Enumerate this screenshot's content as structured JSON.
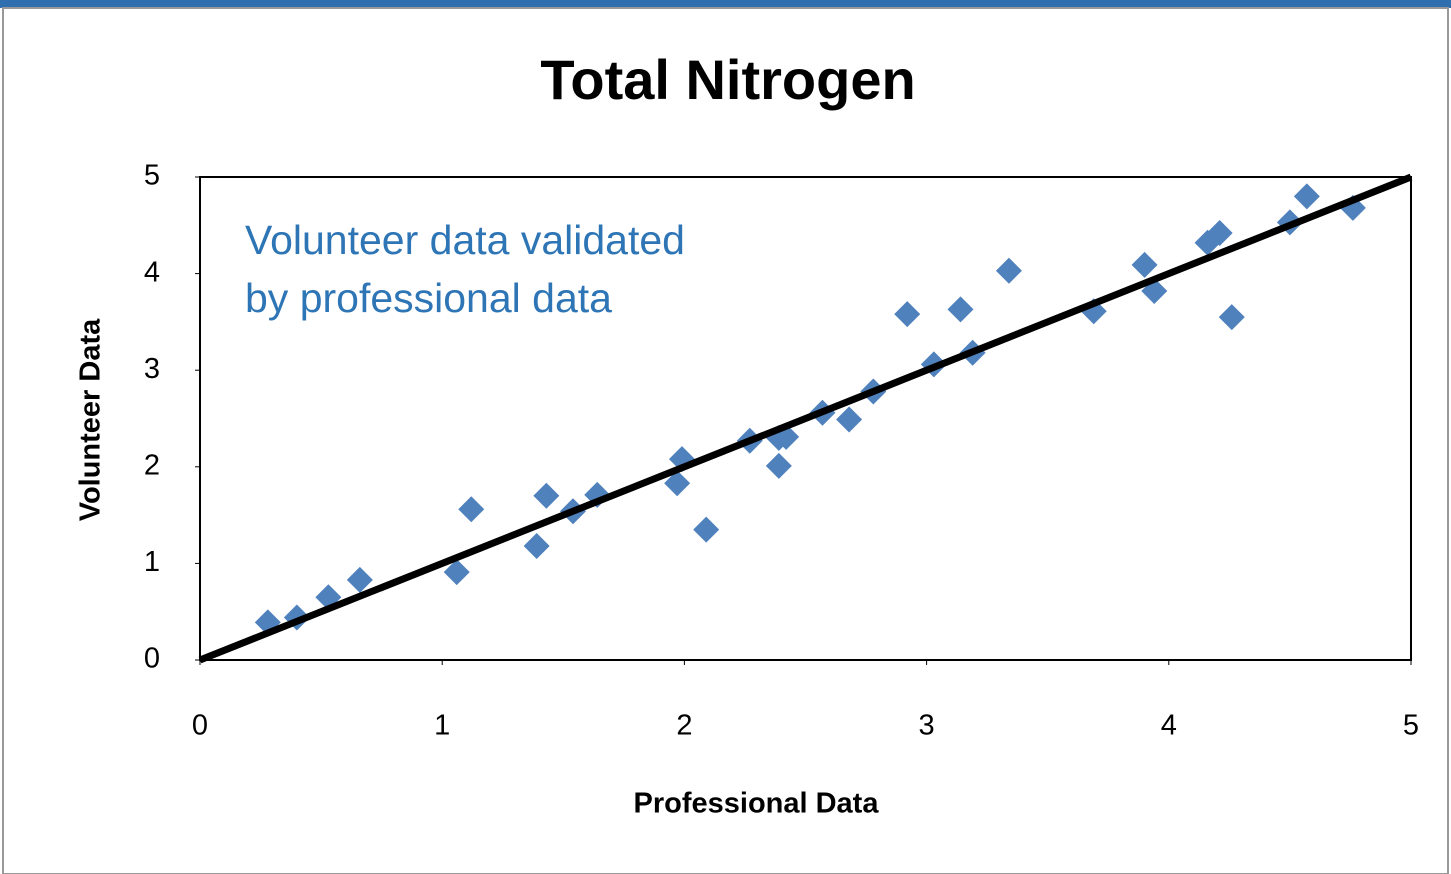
{
  "chart_data": {
    "type": "scatter",
    "title": "Total Nitrogen",
    "xlabel": "Professional Data",
    "ylabel": "Volunteer Data",
    "annotation": [
      "Volunteer data validated",
      "by professional data"
    ],
    "annotation_color": "#2e75b6",
    "xlim": [
      0,
      5
    ],
    "ylim": [
      0,
      5
    ],
    "xticks": [
      0,
      1,
      2,
      3,
      4,
      5
    ],
    "yticks": [
      0,
      1,
      2,
      3,
      4,
      5
    ],
    "grid": false,
    "series": [
      {
        "color": "#4f81bd",
        "x": [
          0.28,
          0.4,
          0.53,
          0.66,
          1.06,
          1.12,
          1.39,
          1.43,
          1.54,
          1.64,
          1.97,
          1.99,
          2.09,
          2.27,
          2.39,
          2.42,
          2.39,
          2.57,
          2.68,
          2.78,
          2.92,
          3.03,
          3.14,
          3.19,
          3.34,
          3.69,
          3.9,
          3.94,
          4.16,
          4.21,
          4.26,
          4.5,
          4.57,
          4.76
        ],
        "values": [
          0.39,
          0.44,
          0.65,
          0.83,
          0.91,
          1.56,
          1.18,
          1.7,
          1.54,
          1.71,
          1.83,
          2.08,
          1.35,
          2.27,
          2.3,
          2.31,
          2.01,
          2.56,
          2.49,
          2.78,
          3.58,
          3.06,
          3.63,
          3.18,
          4.03,
          3.61,
          4.09,
          3.82,
          4.32,
          4.42,
          3.55,
          4.53,
          4.8,
          4.68
        ]
      },
      {
        "type": "line",
        "color": "#000000",
        "x": [
          0,
          5
        ],
        "values": [
          0,
          5
        ]
      }
    ]
  }
}
